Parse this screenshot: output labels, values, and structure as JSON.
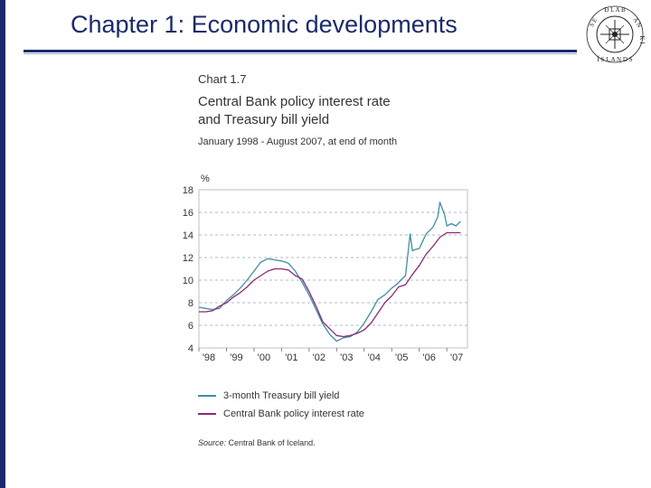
{
  "slide": {
    "title": "Chapter 1: Economic developments"
  },
  "logo": {
    "text": "SEÐLABANKI ÍSLANDS",
    "icon": "seal-icon"
  },
  "chart_header": {
    "label": "Chart 1.7",
    "title_line1": "Central Bank policy interest rate",
    "title_line2": "and Treasury bill yield",
    "subtitle": "January 1998 - August 2007, at end of month"
  },
  "source": {
    "label": "Source:",
    "text": "Central Bank of Iceland."
  },
  "colors": {
    "brand": "#1b2a6b",
    "series_tbill": "#3f8fa8",
    "series_policy": "#8e2a6e",
    "grid": "#9aa5b1"
  },
  "chart_data": {
    "type": "line",
    "title": "Central Bank policy interest rate and Treasury bill yield",
    "subtitle": "January 1998 - August 2007, at end of month",
    "xlabel": "",
    "ylabel": "%",
    "xlim": [
      1998.0,
      2007.75
    ],
    "ylim": [
      4,
      18
    ],
    "yticks": [
      "4",
      "6",
      "8",
      "10",
      "12",
      "14",
      "16",
      "18"
    ],
    "xticks": [
      {
        "label": "'98",
        "x": 1998
      },
      {
        "label": "'99",
        "x": 1999
      },
      {
        "label": "'00",
        "x": 2000
      },
      {
        "label": "'01",
        "x": 2001
      },
      {
        "label": "'02",
        "x": 2002
      },
      {
        "label": "'03",
        "x": 2003
      },
      {
        "label": "'04",
        "x": 2004
      },
      {
        "label": "'05",
        "x": 2005
      },
      {
        "label": "'06",
        "x": 2006
      },
      {
        "label": "'07",
        "x": 2007
      }
    ],
    "grid": true,
    "series": [
      {
        "name": "3-month Treasury bill yield",
        "color": "#3f8fa8",
        "x": [
          1998.0,
          1998.25,
          1998.5,
          1998.75,
          1999.0,
          1999.25,
          1999.5,
          1999.75,
          2000.0,
          2000.25,
          2000.5,
          2000.75,
          2001.0,
          2001.25,
          2001.5,
          2001.75,
          2002.0,
          2002.25,
          2002.5,
          2002.75,
          2003.0,
          2003.25,
          2003.5,
          2003.75,
          2004.0,
          2004.25,
          2004.5,
          2004.75,
          2005.0,
          2005.17,
          2005.33,
          2005.5,
          2005.67,
          2005.75,
          2005.83,
          2006.0,
          2006.25,
          2006.5,
          2006.67,
          2006.75,
          2006.92,
          2007.0,
          2007.17,
          2007.33,
          2007.5
        ],
        "values": [
          7.6,
          7.5,
          7.4,
          7.5,
          8.2,
          8.7,
          9.3,
          10.0,
          10.8,
          11.6,
          11.9,
          11.8,
          11.7,
          11.5,
          10.8,
          9.8,
          8.7,
          7.4,
          6.1,
          5.2,
          4.6,
          4.9,
          5.0,
          5.4,
          6.2,
          7.2,
          8.3,
          8.7,
          9.3,
          9.6,
          10.0,
          10.4,
          14.1,
          12.6,
          12.7,
          12.8,
          14.1,
          14.7,
          15.6,
          16.9,
          15.8,
          14.8,
          15.0,
          14.8,
          15.2
        ]
      },
      {
        "name": "Central Bank policy interest rate",
        "color": "#8e2a6e",
        "x": [
          1998.0,
          1998.25,
          1998.5,
          1998.75,
          1999.0,
          1999.25,
          1999.5,
          1999.75,
          2000.0,
          2000.25,
          2000.5,
          2000.75,
          2001.0,
          2001.25,
          2001.5,
          2001.75,
          2002.0,
          2002.25,
          2002.5,
          2002.75,
          2003.0,
          2003.25,
          2003.5,
          2003.75,
          2004.0,
          2004.25,
          2004.5,
          2004.75,
          2005.0,
          2005.25,
          2005.5,
          2005.75,
          2006.0,
          2006.25,
          2006.5,
          2006.75,
          2007.0,
          2007.25,
          2007.5
        ],
        "values": [
          7.2,
          7.2,
          7.3,
          7.7,
          8.0,
          8.5,
          8.9,
          9.4,
          10.0,
          10.4,
          10.8,
          11.0,
          11.0,
          10.9,
          10.4,
          10.1,
          9.0,
          7.7,
          6.3,
          5.7,
          5.1,
          5.0,
          5.1,
          5.3,
          5.6,
          6.2,
          7.1,
          8.0,
          8.6,
          9.4,
          9.6,
          10.5,
          11.3,
          12.3,
          13.0,
          13.8,
          14.2,
          14.2,
          14.2
        ]
      }
    ]
  }
}
